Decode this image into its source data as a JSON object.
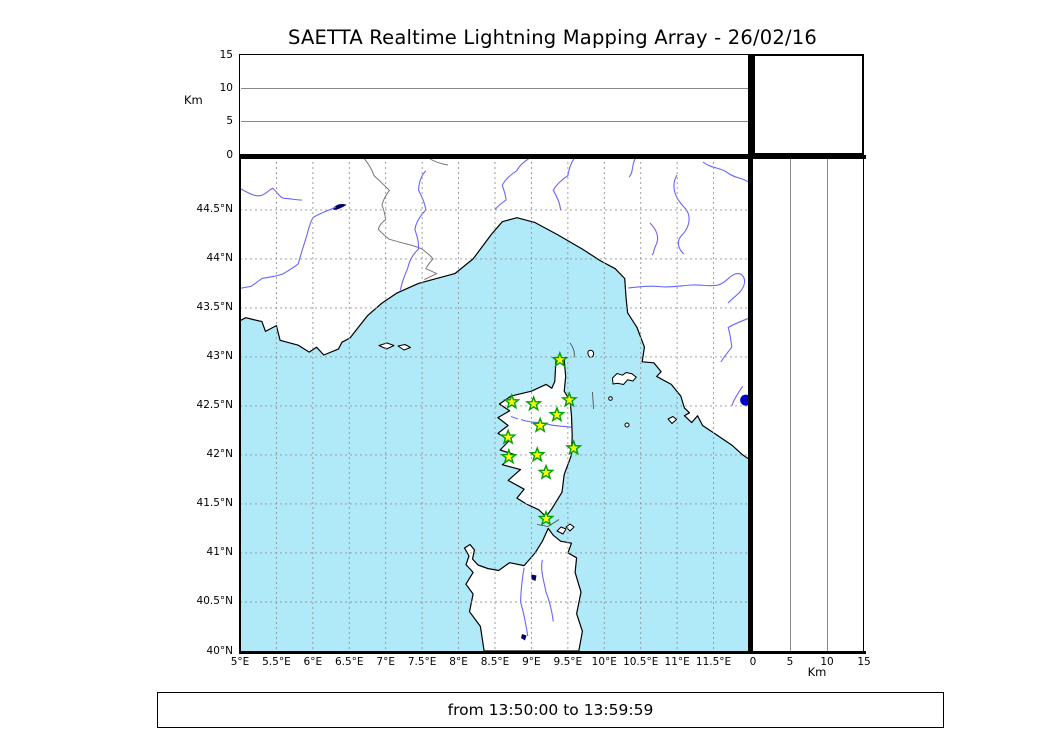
{
  "title": "SAETTA Realtime Lightning Mapping Array - 26/02/16",
  "footer": "from 13:50:00 to 13:59:59",
  "altitude_panel": {
    "label": "Km",
    "range": [
      0,
      15
    ],
    "gridlines": [
      5,
      10
    ],
    "ticks": [
      {
        "v": 0,
        "label": "0"
      },
      {
        "v": 5,
        "label": "5"
      },
      {
        "v": 10,
        "label": "10"
      },
      {
        "v": 15,
        "label": "15"
      }
    ]
  },
  "distance_panel": {
    "label": "Km",
    "range": [
      0,
      15
    ],
    "gridlines": [
      5,
      10
    ],
    "ticks": [
      {
        "v": 0,
        "label": "0"
      },
      {
        "v": 5,
        "label": "5"
      },
      {
        "v": 10,
        "label": "10"
      },
      {
        "v": 15,
        "label": "15"
      }
    ]
  },
  "map": {
    "bounds": {
      "lon_min": 5,
      "lon_max": 12,
      "lat_min": 40,
      "lat_max": 45.04
    },
    "lon_axis": {
      "ticks": [
        {
          "v": 5,
          "label": "5°E"
        },
        {
          "v": 5.5,
          "label": "5.5°E"
        },
        {
          "v": 6,
          "label": "6°E"
        },
        {
          "v": 6.5,
          "label": "6.5°E"
        },
        {
          "v": 7,
          "label": "7°E"
        },
        {
          "v": 7.5,
          "label": "7.5°E"
        },
        {
          "v": 8,
          "label": "8°E"
        },
        {
          "v": 8.5,
          "label": "8.5°E"
        },
        {
          "v": 9,
          "label": "9°E"
        },
        {
          "v": 9.5,
          "label": "9.5°E"
        },
        {
          "v": 10,
          "label": "10°E"
        },
        {
          "v": 10.5,
          "label": "10.5°E"
        },
        {
          "v": 11,
          "label": "11°E"
        },
        {
          "v": 11.5,
          "label": "11.5°E"
        }
      ]
    },
    "lat_axis": {
      "ticks": [
        {
          "v": 44.5,
          "label": "44.5°N"
        },
        {
          "v": 44,
          "label": "44°N"
        },
        {
          "v": 43.5,
          "label": "43.5°N"
        },
        {
          "v": 43,
          "label": "43°N"
        },
        {
          "v": 42.5,
          "label": "42.5°N"
        },
        {
          "v": 42,
          "label": "42°N"
        },
        {
          "v": 41.5,
          "label": "41.5°N"
        },
        {
          "v": 41,
          "label": "41°N"
        },
        {
          "v": 40.5,
          "label": "40.5°N"
        },
        {
          "v": 40,
          "label": "40°N"
        }
      ]
    },
    "colors": {
      "sea": "#b0e9f8",
      "land": "#ffffff",
      "coastline": "#000000",
      "rivers": "#6666ff",
      "lakes": "#000066",
      "borders": "#777777",
      "grid": "#949494"
    },
    "stations": {
      "marker": "star",
      "fill": "#ffff00",
      "stroke": "#00a000",
      "points": [
        {
          "lon": 9.39,
          "lat": 42.97
        },
        {
          "lon": 8.73,
          "lat": 42.54
        },
        {
          "lon": 9.03,
          "lat": 42.52
        },
        {
          "lon": 9.52,
          "lat": 42.56
        },
        {
          "lon": 9.35,
          "lat": 42.41
        },
        {
          "lon": 9.12,
          "lat": 42.3
        },
        {
          "lon": 8.68,
          "lat": 42.18
        },
        {
          "lon": 9.58,
          "lat": 42.07
        },
        {
          "lon": 8.69,
          "lat": 41.98
        },
        {
          "lon": 9.08,
          "lat": 42.0
        },
        {
          "lon": 9.2,
          "lat": 41.82
        },
        {
          "lon": 9.2,
          "lat": 41.35
        }
      ]
    },
    "event": {
      "marker": "circle",
      "color": "#0000cc",
      "lon": 11.94,
      "lat": 42.56
    }
  }
}
